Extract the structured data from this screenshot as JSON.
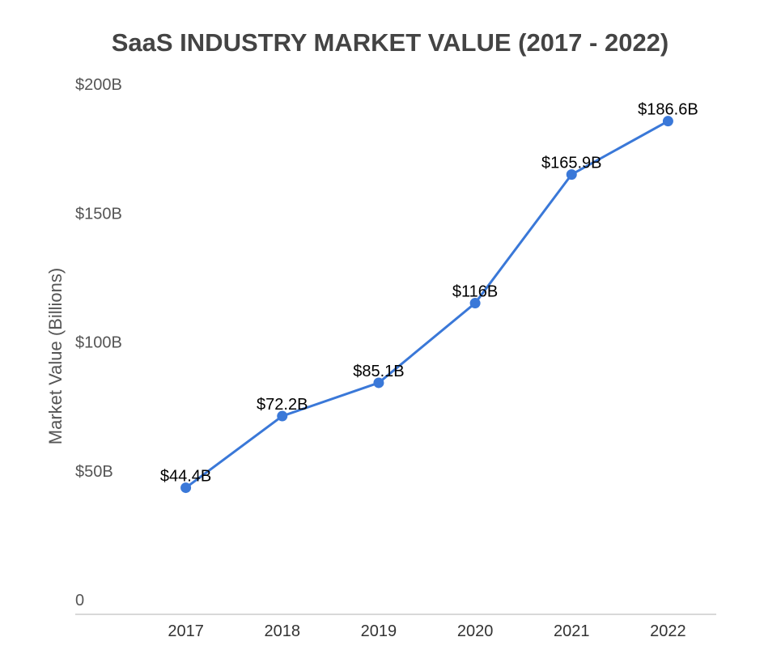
{
  "chart_data": {
    "type": "line",
    "title": "SaaS INDUSTRY MARKET VALUE (2017 - 2022)",
    "xlabel": "",
    "ylabel": "Market Value (Billions)",
    "categories": [
      "2017",
      "2018",
      "2019",
      "2020",
      "2021",
      "2022"
    ],
    "series": [
      {
        "values": [
          44.4,
          72.2,
          85.1,
          116,
          165.9,
          186.6
        ],
        "data_labels": [
          "$44.4B",
          "$72.2B",
          "$85.1B",
          "$116B",
          "$165.9B",
          "$186.6B"
        ],
        "color": "#3a78d8"
      }
    ],
    "ylim": [
      0,
      200
    ],
    "yticks": [
      0,
      50,
      100,
      150,
      200
    ],
    "ytick_labels": [
      "0",
      "$50B",
      "$100B",
      "$150B",
      "$200B"
    ],
    "grid": false,
    "legend": "none"
  }
}
